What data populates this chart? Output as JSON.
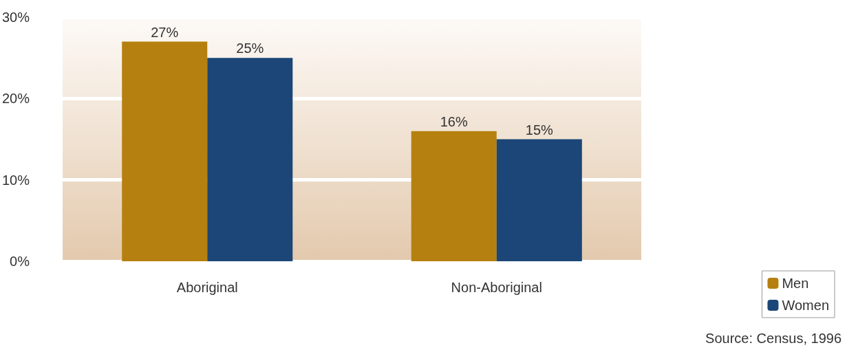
{
  "chart_data": {
    "type": "bar",
    "categories": [
      "Aboriginal",
      "Non-Aboriginal"
    ],
    "series": [
      {
        "name": "Men",
        "color": "#b5800f",
        "values": [
          27,
          16
        ],
        "value_labels": [
          "27%",
          "16%"
        ]
      },
      {
        "name": "Women",
        "color": "#1b4677",
        "values": [
          25,
          15
        ],
        "value_labels": [
          "25%",
          "15%"
        ]
      }
    ],
    "ylim": [
      0,
      30
    ],
    "yticks": [
      {
        "value": 0,
        "label": "0%"
      },
      {
        "value": 10,
        "label": "10%"
      },
      {
        "value": 20,
        "label": "20%"
      },
      {
        "value": 30,
        "label": "30%"
      }
    ],
    "grid": "y",
    "legend": "bottom right",
    "annotations": [
      "Source: Census, 1996"
    ]
  }
}
